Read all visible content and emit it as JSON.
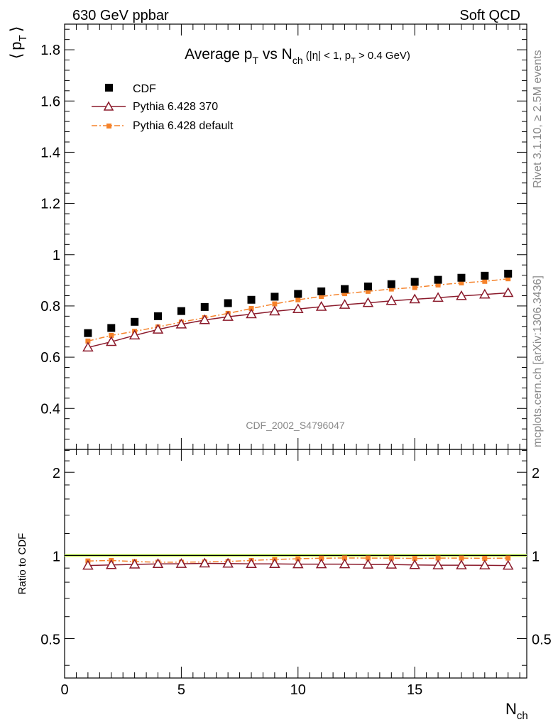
{
  "header": {
    "left_label": "630 GeV ppbar",
    "right_label": "Soft QCD"
  },
  "side_labels": {
    "rivet": "Rivet 3.1.10, ≥ 2.5M events",
    "mcplots": "mcplots.cern.ch [arXiv:1306.3436]"
  },
  "watermark": "CDF_2002_S4796047",
  "chart_data": [
    {
      "type": "scatter",
      "title": {
        "prefix": "Average p",
        "prefix_sub": "T",
        "middle": " vs N",
        "middle_sub": "ch",
        "cond_a": " (|η| < 1, p",
        "cond_sub": "T",
        "cond_b": " > 0.4 GeV)"
      },
      "ylabel": {
        "open": "⟨",
        "main": "p",
        "sub": "T",
        "close": "⟩"
      },
      "xlim": [
        0,
        19.8
      ],
      "ylim": [
        0.24,
        1.9
      ],
      "y_ticks": [
        0.4,
        0.6,
        0.8,
        1,
        1.2,
        1.4,
        1.6,
        1.8
      ],
      "y_tick_labels": [
        "0.4",
        "0.6",
        "0.8",
        "1",
        "1.2",
        "1.4",
        "1.6",
        "1.8"
      ],
      "x": [
        1,
        2,
        3,
        4,
        5,
        6,
        7,
        8,
        9,
        10,
        11,
        12,
        13,
        14,
        15,
        16,
        17,
        18,
        19
      ],
      "legend_position": "top-left",
      "series": [
        {
          "name": "CDF",
          "marker": "square",
          "color": "#000000",
          "values": [
            0.694,
            0.714,
            0.738,
            0.76,
            0.78,
            0.796,
            0.811,
            0.824,
            0.836,
            0.847,
            0.857,
            0.866,
            0.876,
            0.885,
            0.894,
            0.902,
            0.91,
            0.918,
            0.926
          ]
        },
        {
          "name": "Pythia 6.428 370",
          "marker": "open-triangle",
          "line": "solid",
          "color": "#8b1a2b",
          "values": [
            0.638,
            0.66,
            0.685,
            0.708,
            0.728,
            0.745,
            0.758,
            0.768,
            0.779,
            0.788,
            0.797,
            0.805,
            0.812,
            0.82,
            0.826,
            0.832,
            0.839,
            0.845,
            0.851
          ]
        },
        {
          "name": "Pythia 6.428 default",
          "marker": "small-square",
          "line": "dashdot",
          "color": "#f5822a",
          "values": [
            0.663,
            0.685,
            0.701,
            0.718,
            0.737,
            0.754,
            0.771,
            0.79,
            0.808,
            0.824,
            0.837,
            0.848,
            0.857,
            0.866,
            0.872,
            0.882,
            0.89,
            0.896,
            0.906
          ]
        }
      ]
    },
    {
      "type": "scatter",
      "ylabel": "Ratio to CDF",
      "xlabel": {
        "main": "N",
        "sub": "ch"
      },
      "scale": "log",
      "xlim": [
        0,
        19.8
      ],
      "ylim": [
        0.36,
        2.42
      ],
      "y_ticks": [
        0.5,
        1,
        2
      ],
      "y_tick_labels": [
        "0.5",
        "1",
        "2"
      ],
      "x_ticks": [
        0,
        5,
        10,
        15
      ],
      "x_tick_labels": [
        "0",
        "5",
        "10",
        "15"
      ],
      "x": [
        1,
        2,
        3,
        4,
        5,
        6,
        7,
        8,
        9,
        10,
        11,
        12,
        13,
        14,
        15,
        16,
        17,
        18,
        19
      ],
      "reference_band": {
        "center": 1.0,
        "half_width": 0.012,
        "color": "#ccff66"
      },
      "series": [
        {
          "name": "Pythia 6.428 370",
          "marker": "open-triangle",
          "line": "solid",
          "color": "#8b1a2b",
          "values": [
            0.919,
            0.924,
            0.928,
            0.932,
            0.933,
            0.936,
            0.935,
            0.932,
            0.932,
            0.93,
            0.93,
            0.93,
            0.927,
            0.927,
            0.924,
            0.922,
            0.922,
            0.921,
            0.919
          ]
        },
        {
          "name": "Pythia 6.428 default",
          "marker": "small-square",
          "line": "dashdot",
          "color": "#f5822a",
          "values": [
            0.955,
            0.959,
            0.95,
            0.945,
            0.945,
            0.947,
            0.951,
            0.959,
            0.967,
            0.973,
            0.977,
            0.979,
            0.978,
            0.978,
            0.975,
            0.978,
            0.978,
            0.976,
            0.978
          ]
        }
      ]
    }
  ]
}
